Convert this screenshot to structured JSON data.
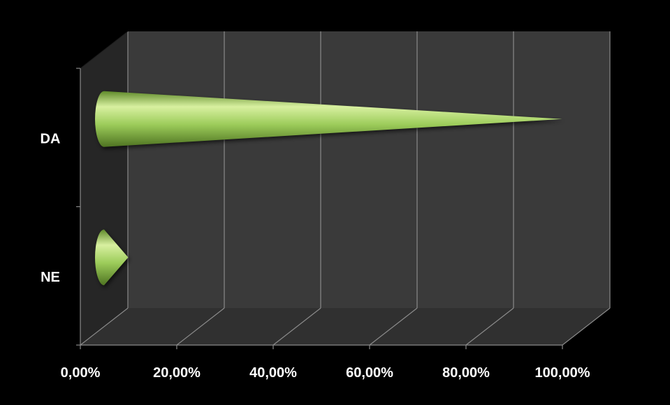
{
  "chart_data": {
    "type": "bar",
    "orientation": "horizontal",
    "style": "3d-cone",
    "categories": [
      "DA",
      "NE"
    ],
    "values": [
      95.0,
      5.0
    ],
    "xlim": [
      0,
      100
    ],
    "x_ticks": [
      "0,00%",
      "20,00%",
      "40,00%",
      "60,00%",
      "80,00%",
      "100,00%"
    ],
    "grid": true,
    "legend": "none",
    "colors": {
      "background": "#000000",
      "plot_back": "#3a3a3a",
      "plot_side": "#262626",
      "plot_floor": "#303030",
      "gridline": "#8a8a8a",
      "cone_light": "#d8f0a0",
      "cone_mid": "#9ccc5a",
      "cone_dark": "#5f8a2a",
      "text": "#ffffff"
    }
  }
}
